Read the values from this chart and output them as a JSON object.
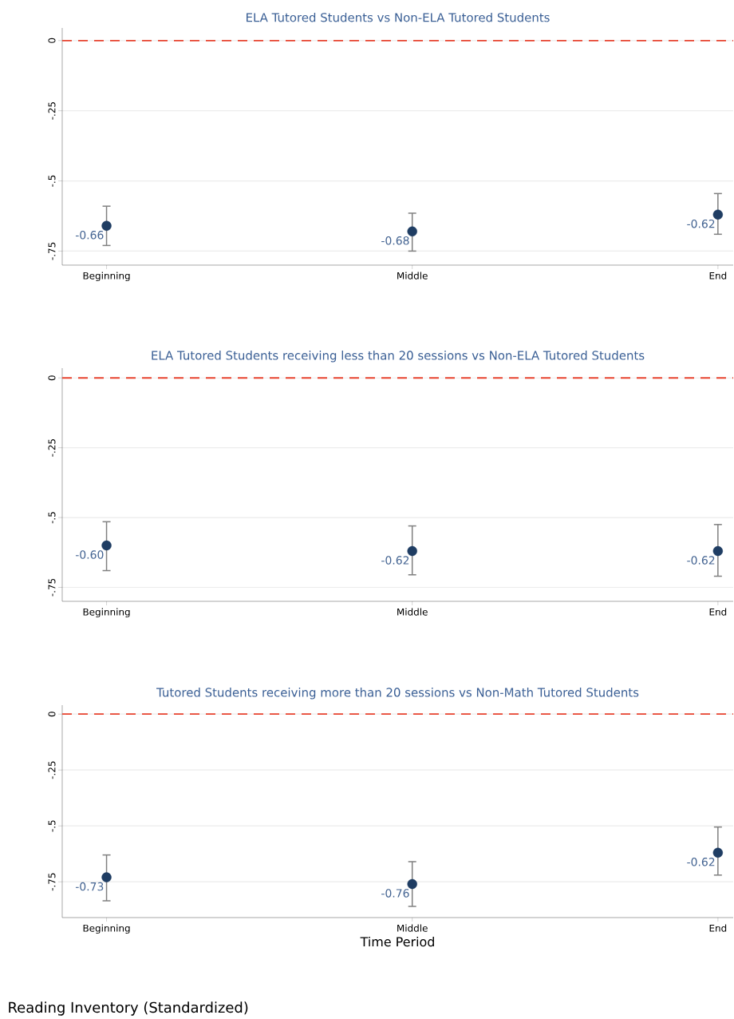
{
  "chart_data": [
    {
      "type": "scatter",
      "title": "ELA Tutored Students vs Non-ELA Tutored Students",
      "categories": [
        "Beginning",
        "Middle",
        "End"
      ],
      "values": [
        -0.66,
        -0.68,
        -0.62
      ],
      "errors": [
        [
          -0.73,
          -0.59
        ],
        [
          -0.75,
          -0.615
        ],
        [
          -0.69,
          -0.545
        ]
      ],
      "value_labels": [
        "-0.66",
        "-0.68",
        "-0.62"
      ],
      "color": "#1f3d63",
      "marker": "circle",
      "ylim": [
        -0.8,
        0.045
      ],
      "yticks": [
        0,
        {
          "value": -0.25,
          "label": "-.25"
        },
        {
          "value": -0.5,
          "label": "-.5"
        },
        {
          "value": -0.75,
          "label": "-.75"
        }
      ],
      "grid": "y",
      "ref_lines": [
        {
          "axis": "y",
          "value": 0,
          "color": "#e8432f",
          "line_style": "dashed"
        }
      ]
    },
    {
      "type": "scatter",
      "title": "ELA Tutored Students receiving less than 20 sessions vs Non-ELA Tutored Students",
      "categories": [
        "Beginning",
        "Middle",
        "End"
      ],
      "values": [
        -0.6,
        -0.62,
        -0.62
      ],
      "errors": [
        [
          -0.69,
          -0.515
        ],
        [
          -0.705,
          -0.53
        ],
        [
          -0.71,
          -0.525
        ]
      ],
      "value_labels": [
        "-0.60",
        "-0.62",
        "-0.62"
      ],
      "color": "#1f3d63",
      "marker": "circle",
      "ylim": [
        -0.8,
        0.035
      ],
      "yticks": [
        0,
        {
          "value": -0.25,
          "label": "-.25"
        },
        {
          "value": -0.5,
          "label": "-.5"
        },
        {
          "value": -0.75,
          "label": "-.75"
        }
      ],
      "grid": "y",
      "ref_lines": [
        {
          "axis": "y",
          "value": 0,
          "color": "#e8432f",
          "line_style": "dashed"
        }
      ]
    },
    {
      "type": "scatter",
      "title": "Tutored Students receiving more than 20 sessions vs Non-Math Tutored Students",
      "xlabel": "Time Period",
      "annotations": [
        "Reading Inventory (Standardized)"
      ],
      "categories": [
        "Beginning",
        "Middle",
        "End"
      ],
      "values": [
        -0.73,
        -0.76,
        -0.62
      ],
      "errors": [
        [
          -0.835,
          -0.63
        ],
        [
          -0.86,
          -0.66
        ],
        [
          -0.72,
          -0.505
        ]
      ],
      "value_labels": [
        "-0.73",
        "-0.76",
        "-0.62"
      ],
      "color": "#1f3d63",
      "marker": "circle",
      "ylim": [
        -0.91,
        0.04
      ],
      "yticks": [
        0,
        {
          "value": -0.25,
          "label": "-.25"
        },
        {
          "value": -0.5,
          "label": "-.5"
        },
        {
          "value": -0.75,
          "label": "-.75"
        }
      ],
      "grid": "y",
      "ref_lines": [
        {
          "axis": "y",
          "value": 0,
          "color": "#e8432f",
          "line_style": "dashed"
        }
      ]
    }
  ]
}
